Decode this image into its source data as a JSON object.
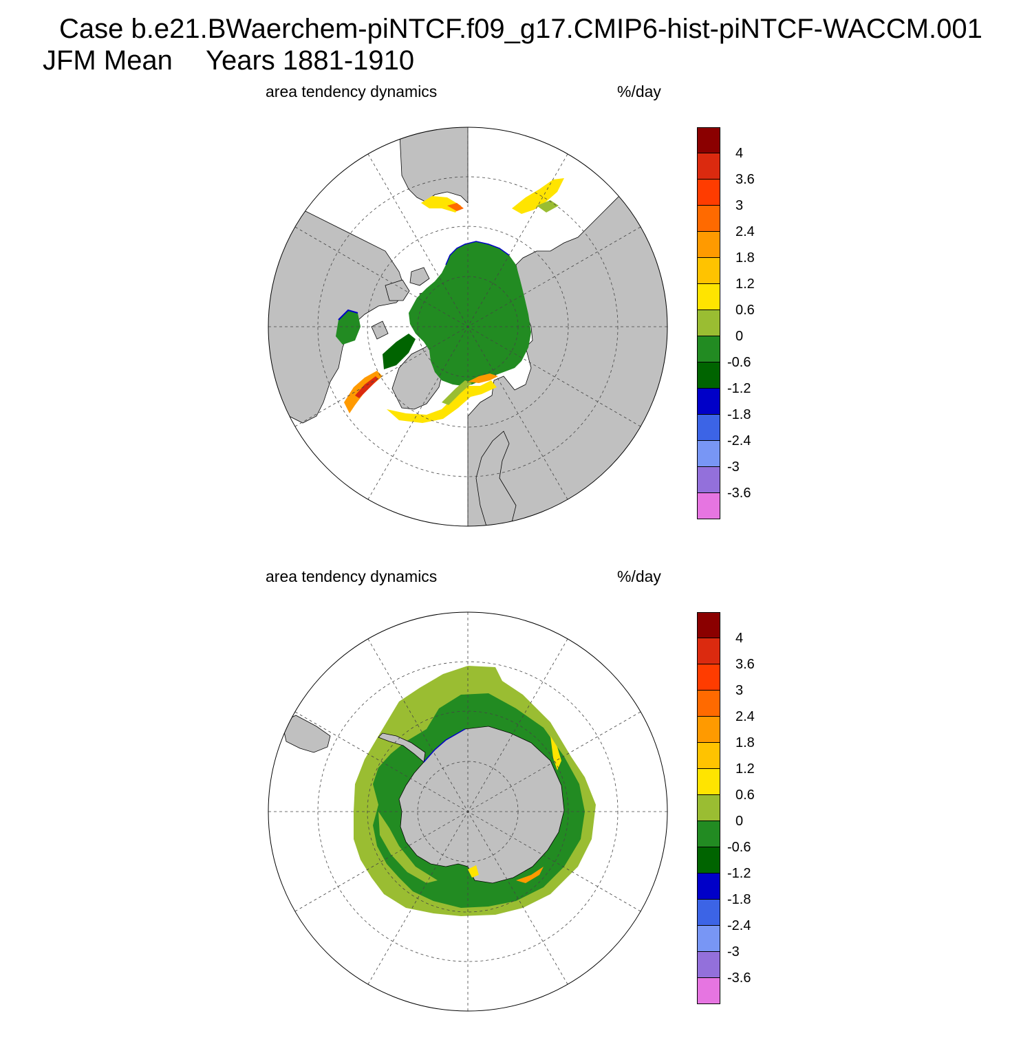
{
  "title": {
    "line1": "Case b.e21.BWaerchem-piNTCF.f09_g17.CMIP6-hist-piNTCF-WACCM.001",
    "line2_left": "JFM Mean",
    "line2_right": "Years 1881-1910"
  },
  "panels": [
    {
      "id": "north",
      "left_label": "area tendency dynamics",
      "right_label": "%/day",
      "hemisphere": "Arctic (north polar stereographic)"
    },
    {
      "id": "south",
      "left_label": "area tendency dynamics",
      "right_label": "%/day",
      "hemisphere": "Antarctic (south polar stereographic)"
    }
  ],
  "colorbar": {
    "levels": [
      "4",
      "3.6",
      "3",
      "2.4",
      "1.8",
      "1.2",
      "0.6",
      "0",
      "-0.6",
      "-1.2",
      "-1.8",
      "-2.4",
      "-3",
      "-3.6"
    ],
    "colors": [
      "#8b0000",
      "#db2a0f",
      "#ff3c00",
      "#ff6a00",
      "#ff9a00",
      "#ffc300",
      "#ffe400",
      "#9abd32",
      "#228b22",
      "#006400",
      "#0000c8",
      "#3c64e6",
      "#7896f5",
      "#9370db",
      "#e675e1"
    ]
  },
  "colors": {
    "land": "#c0c0c0",
    "ocean": "#ffffff",
    "grid": "#444444"
  }
}
